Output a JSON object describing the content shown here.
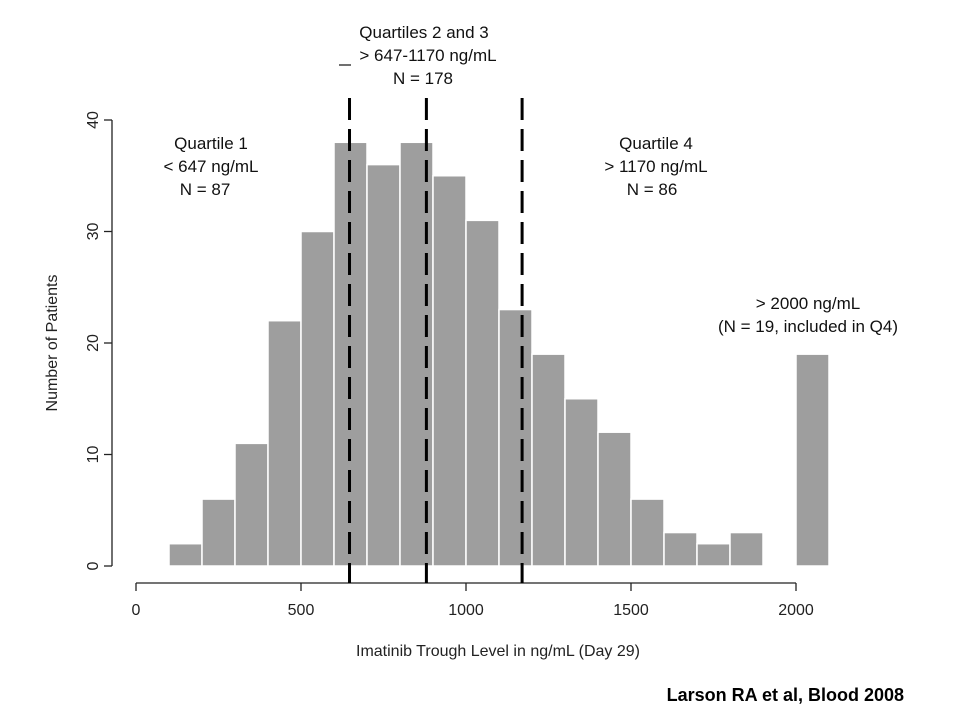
{
  "chart_data": {
    "type": "bar",
    "subtype": "histogram",
    "xlabel": "Imatinib Trough Level in ng/mL (Day 29)",
    "ylabel": "Number of Patients",
    "xlim": [
      0,
      2100
    ],
    "ylim": [
      0,
      40
    ],
    "xticks": [
      0,
      500,
      1000,
      1500,
      2000
    ],
    "yticks": [
      0,
      10,
      20,
      30,
      40
    ],
    "grid": false,
    "bar_color": "#9e9e9e",
    "bins": [
      {
        "x0": 100,
        "x1": 200,
        "count": 2
      },
      {
        "x0": 200,
        "x1": 300,
        "count": 6
      },
      {
        "x0": 300,
        "x1": 400,
        "count": 11
      },
      {
        "x0": 400,
        "x1": 500,
        "count": 22
      },
      {
        "x0": 500,
        "x1": 600,
        "count": 30
      },
      {
        "x0": 600,
        "x1": 700,
        "count": 38
      },
      {
        "x0": 700,
        "x1": 800,
        "count": 36
      },
      {
        "x0": 800,
        "x1": 900,
        "count": 38
      },
      {
        "x0": 900,
        "x1": 1000,
        "count": 35
      },
      {
        "x0": 1000,
        "x1": 1100,
        "count": 31
      },
      {
        "x0": 1100,
        "x1": 1200,
        "count": 23
      },
      {
        "x0": 1200,
        "x1": 1300,
        "count": 19
      },
      {
        "x0": 1300,
        "x1": 1400,
        "count": 15
      },
      {
        "x0": 1400,
        "x1": 1500,
        "count": 12
      },
      {
        "x0": 1500,
        "x1": 1600,
        "count": 6
      },
      {
        "x0": 1600,
        "x1": 1700,
        "count": 3
      },
      {
        "x0": 1700,
        "x1": 1800,
        "count": 2
      },
      {
        "x0": 1800,
        "x1": 1900,
        "count": 3
      },
      {
        "x0": 2000,
        "x1": 2100,
        "count": 19
      }
    ],
    "quartile_cutoffs": [
      647,
      880,
      1170
    ],
    "annotations": [
      {
        "id": "q1",
        "lines": [
          "Quartile 1",
          "< 647 ng/mL",
          "N = 87"
        ]
      },
      {
        "id": "q23",
        "lines": [
          "Quartiles 2 and 3",
          "> 647-1170 ng/mL",
          "N = 178"
        ]
      },
      {
        "id": "q4",
        "lines": [
          "Quartile 4",
          "> 1170 ng/mL",
          "N = 86"
        ]
      },
      {
        "id": "over2000",
        "lines": [
          "> 2000 ng/mL",
          "(N = 19, included in Q4)"
        ]
      }
    ]
  },
  "citation": "Larson RA et al, Blood 2008"
}
